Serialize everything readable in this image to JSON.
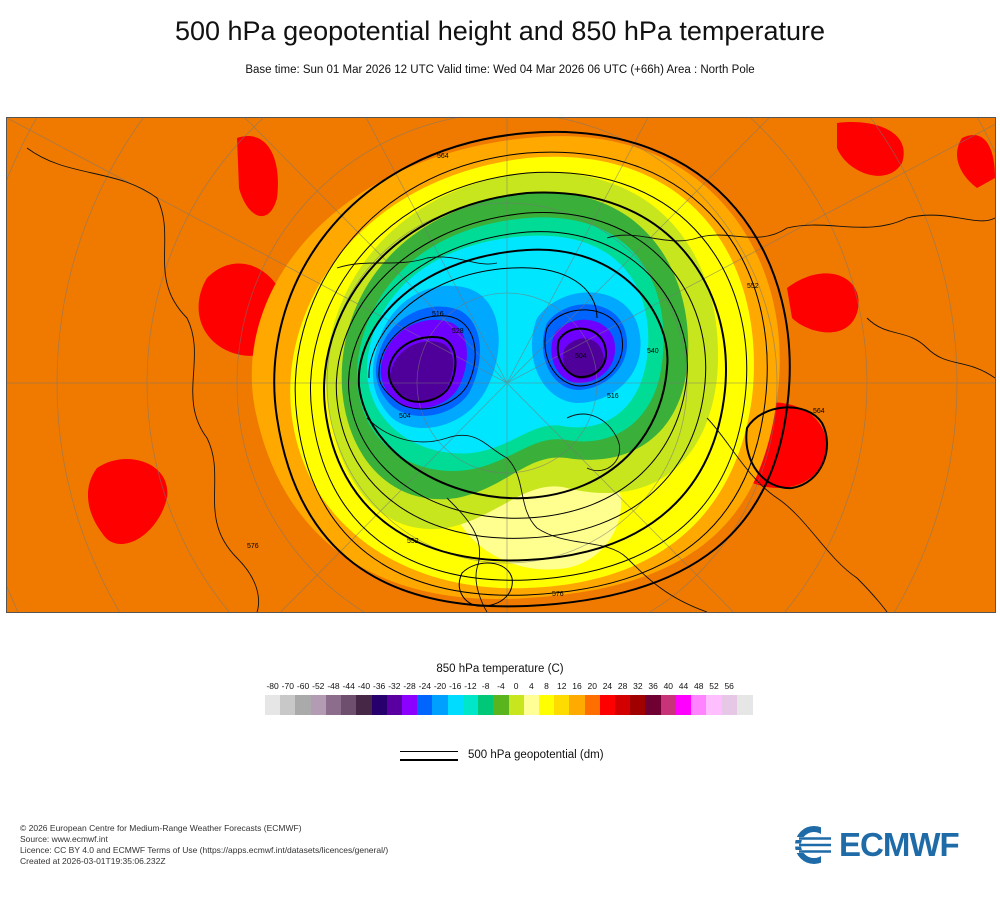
{
  "title": "500 hPa geopotential height and 850 hPa temperature",
  "subtitle": "Base time: Sun 01 Mar 2026 12 UTC Valid time: Wed 04 Mar 2026 06 UTC (+66h) Area : North Pole",
  "map": {
    "contour_labels": [
      "504",
      "516",
      "528",
      "540",
      "552",
      "564",
      "576"
    ],
    "colors": {
      "warm": "#f07a00",
      "hot": "#ff0000",
      "mild": "#ffa800",
      "cool": "#ffff00",
      "pale": "#ffff90",
      "lime": "#c8e61e",
      "green": "#3aaf3a",
      "teal": "#00dc96",
      "cyan": "#00e6ff",
      "blue": "#00a8ff",
      "deepblue": "#0064ff",
      "violet": "#6e00ff",
      "purple": "#50009a"
    }
  },
  "colorbar": {
    "title": "850 hPa temperature (C)",
    "ticks": [
      "-80",
      "-70",
      "-60",
      "-52",
      "-48",
      "-44",
      "-40",
      "-36",
      "-32",
      "-28",
      "-24",
      "-20",
      "-16",
      "-12",
      "-8",
      "-4",
      "0",
      "4",
      "8",
      "12",
      "16",
      "20",
      "24",
      "28",
      "32",
      "36",
      "40",
      "44",
      "48",
      "52",
      "56"
    ],
    "colors": [
      "#e6e6e6",
      "#c8c8c8",
      "#aaaaaa",
      "#b49bb4",
      "#8c6e8c",
      "#6e506e",
      "#462846",
      "#28006e",
      "#5a00a0",
      "#8c00ff",
      "#0064ff",
      "#00a0ff",
      "#00dcff",
      "#00e6c8",
      "#00c878",
      "#5ab41e",
      "#c8e61e",
      "#ffff96",
      "#ffff00",
      "#ffdc00",
      "#ffaa00",
      "#ff6e00",
      "#ff0000",
      "#d20000",
      "#a00000",
      "#6e0032",
      "#c83278",
      "#ff00ff",
      "#ff82ff",
      "#ffbeff",
      "#e6c8e6",
      "#e6e6e6"
    ]
  },
  "legend": {
    "label": "500 hPa geopotential (dm)"
  },
  "footer": {
    "lines": [
      "© 2026 European Centre for Medium-Range Weather Forecasts (ECMWF)",
      "Source: www.ecmwf.int",
      "Licence: CC BY 4.0 and ECMWF Terms of Use (https://apps.ecmwf.int/datasets/licences/general/)",
      "Created at 2026-03-01T19:35:06.232Z"
    ]
  },
  "logo": {
    "text": "ECMWF",
    "color": "#1e6ba8"
  }
}
